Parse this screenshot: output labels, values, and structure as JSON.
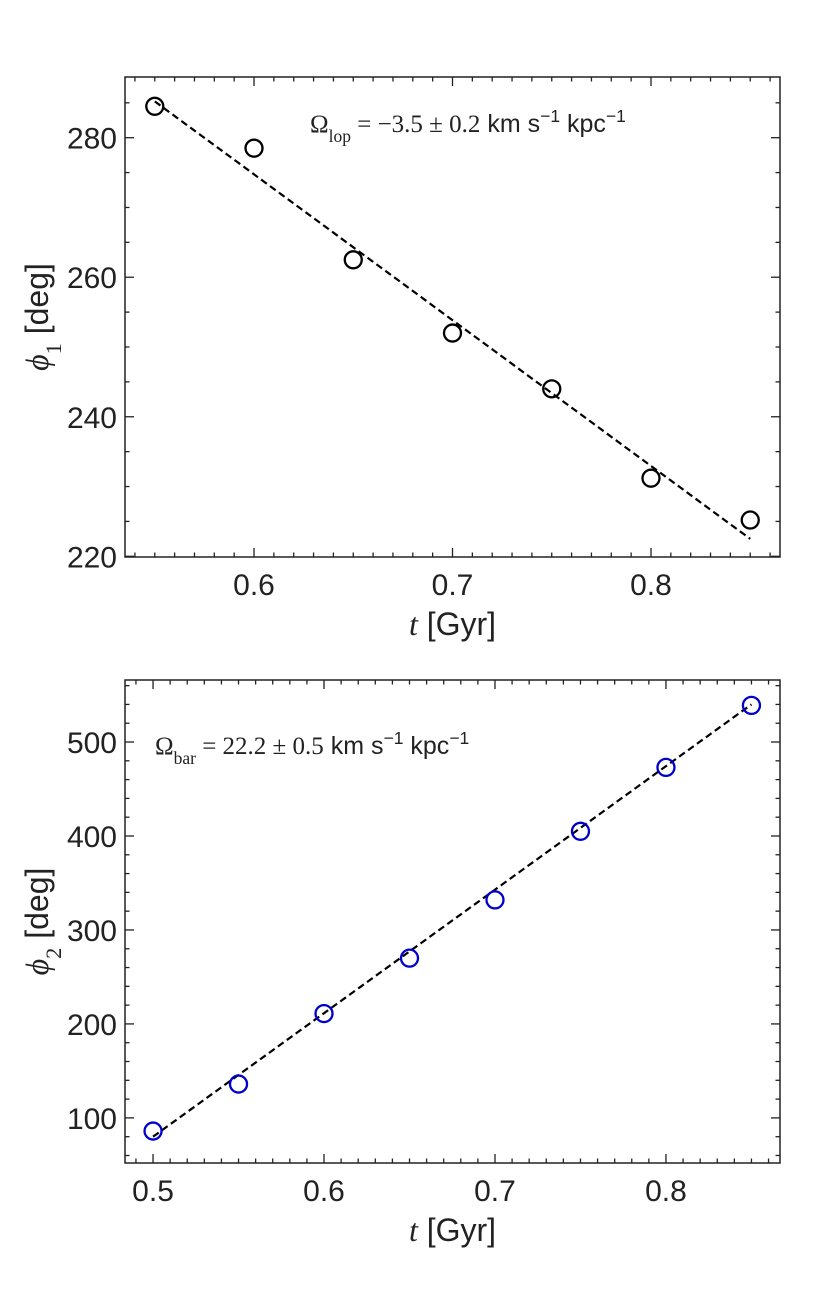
{
  "chart_data": [
    {
      "type": "scatter",
      "x": [
        0.55,
        0.6,
        0.65,
        0.7,
        0.75,
        0.8,
        0.85
      ],
      "series": [
        {
          "color": "#000000",
          "marker": "circle",
          "values": [
            284.5,
            278.5,
            262.5,
            252,
            244,
            231.2,
            225.2
          ]
        }
      ],
      "fit": {
        "x": [
          0.55,
          0.85
        ],
        "values": [
          285.2,
          222.5
        ],
        "color": "#000000",
        "style": "dashed"
      },
      "xlim": [
        0.535,
        0.865
      ],
      "ylim": [
        219.9,
        288.7
      ],
      "xticks": [
        0.6,
        0.7,
        0.8
      ],
      "yticks": [
        220,
        240,
        260,
        280
      ],
      "xminor": [
        0.54,
        0.55,
        0.56,
        0.57,
        0.58,
        0.59,
        0.61,
        0.62,
        0.63,
        0.64,
        0.65,
        0.66,
        0.67,
        0.68,
        0.69,
        0.71,
        0.72,
        0.73,
        0.74,
        0.75,
        0.76,
        0.77,
        0.78,
        0.79,
        0.81,
        0.82,
        0.83,
        0.84,
        0.85,
        0.86
      ],
      "yminor": [
        225,
        230,
        235,
        245,
        250,
        255,
        265,
        270,
        275,
        285
      ],
      "xlabel": [
        {
          "text": "t",
          "font": "serif",
          "style": "italic"
        },
        {
          "text": " [Gyr]"
        }
      ],
      "ylabel": [
        {
          "text": "ϕ",
          "font": "serif",
          "style": "italic"
        },
        {
          "text": "1",
          "font": "serif",
          "shift": "sub"
        },
        {
          "text": " [deg]"
        }
      ],
      "annotation": [
        {
          "text": "Ω",
          "font": "serif"
        },
        {
          "text": "lop",
          "font": "serif",
          "shift": "sub"
        },
        {
          "text": " = −3.5 ± 0.2",
          "font": "serif"
        },
        {
          "text": " km s"
        },
        {
          "text": "−1",
          "shift": "sup"
        },
        {
          "text": " kpc"
        },
        {
          "text": "−1",
          "shift": "sup"
        }
      ]
    },
    {
      "type": "scatter",
      "x": [
        0.5,
        0.55,
        0.6,
        0.65,
        0.7,
        0.75,
        0.8,
        0.85
      ],
      "series": [
        {
          "color": "#0000cc",
          "marker": "circle",
          "values": [
            86,
            136,
            211,
            270,
            332,
            405,
            473,
            539
          ]
        }
      ],
      "fit": {
        "x": [
          0.5,
          0.85
        ],
        "values": [
          80,
          540
        ],
        "color": "#000000",
        "style": "dashed"
      },
      "xlim": [
        0.4836,
        0.8667
      ],
      "ylim": [
        52,
        566
      ],
      "xticks": [
        0.5,
        0.6,
        0.7,
        0.8
      ],
      "yticks": [
        100,
        200,
        300,
        400,
        500
      ],
      "xminor": [
        0.49,
        0.51,
        0.52,
        0.53,
        0.54,
        0.55,
        0.56,
        0.57,
        0.58,
        0.59,
        0.61,
        0.62,
        0.63,
        0.64,
        0.65,
        0.66,
        0.67,
        0.68,
        0.69,
        0.71,
        0.72,
        0.73,
        0.74,
        0.75,
        0.76,
        0.77,
        0.78,
        0.79,
        0.81,
        0.82,
        0.83,
        0.84,
        0.85,
        0.86
      ],
      "yminor": [
        60,
        80,
        120,
        140,
        160,
        180,
        220,
        240,
        260,
        280,
        320,
        340,
        360,
        380,
        420,
        440,
        460,
        480,
        520,
        540,
        560
      ],
      "xlabel": [
        {
          "text": "t",
          "font": "serif",
          "style": "italic"
        },
        {
          "text": " [Gyr]"
        }
      ],
      "ylabel": [
        {
          "text": "ϕ",
          "font": "serif",
          "style": "italic"
        },
        {
          "text": "2",
          "font": "serif",
          "shift": "sub"
        },
        {
          "text": " [deg]"
        }
      ],
      "annotation": [
        {
          "text": "Ω",
          "font": "serif"
        },
        {
          "text": "bar",
          "font": "serif",
          "shift": "sub"
        },
        {
          "text": " = 22.2 ± 0.5",
          "font": "serif"
        },
        {
          "text": " km s"
        },
        {
          "text": "−1",
          "shift": "sup"
        },
        {
          "text": " kpc"
        },
        {
          "text": "−1",
          "shift": "sup"
        }
      ]
    }
  ]
}
